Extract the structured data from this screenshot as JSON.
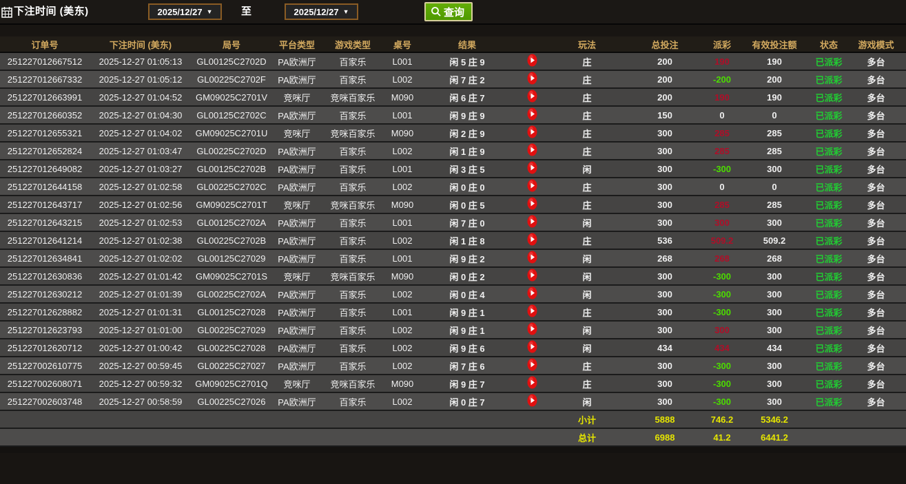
{
  "filter_bar": {
    "label": "下注时间 (美东)",
    "date_from": "2025/12/27",
    "to_label": "至",
    "date_to": "2025/12/27",
    "query_label": "查询",
    "calendar_icon": "calendar-icon",
    "search_icon": "magnifier-icon"
  },
  "table": {
    "columns": [
      "订单号",
      "下注时间 (美东)",
      "局号",
      "平台类型",
      "游戏类型",
      "桌号",
      "结果",
      "",
      "玩法",
      "总投注",
      "派彩",
      "有效投注额",
      "状态",
      "游戏模式"
    ],
    "rows": [
      {
        "order": "251227012667512",
        "time": "2025-12-27 01:05:13",
        "round": "GL00125C2702D",
        "platform": "PA欧洲厅",
        "game_type": "百家乐",
        "table_no": "L001",
        "result": "闲 5 庄 9",
        "bet_on": "庄",
        "total_bet": "200",
        "payout": "190",
        "valid_bet": "190",
        "status": "已派彩",
        "mode": "多台"
      },
      {
        "order": "251227012667332",
        "time": "2025-12-27 01:05:12",
        "round": "GL00225C2702F",
        "platform": "PA欧洲厅",
        "game_type": "百家乐",
        "table_no": "L002",
        "result": "闲 7 庄 2",
        "bet_on": "庄",
        "total_bet": "200",
        "payout": "-200",
        "valid_bet": "200",
        "status": "已派彩",
        "mode": "多台"
      },
      {
        "order": "251227012663991",
        "time": "2025-12-27 01:04:52",
        "round": "GM09025C2701V",
        "platform": "竞咪厅",
        "game_type": "竞咪百家乐",
        "table_no": "M090",
        "result": "闲 6 庄 7",
        "bet_on": "庄",
        "total_bet": "200",
        "payout": "190",
        "valid_bet": "190",
        "status": "已派彩",
        "mode": "多台"
      },
      {
        "order": "251227012660352",
        "time": "2025-12-27 01:04:30",
        "round": "GL00125C2702C",
        "platform": "PA欧洲厅",
        "game_type": "百家乐",
        "table_no": "L001",
        "result": "闲 9 庄 9",
        "bet_on": "庄",
        "total_bet": "150",
        "payout": "0",
        "valid_bet": "0",
        "status": "已派彩",
        "mode": "多台"
      },
      {
        "order": "251227012655321",
        "time": "2025-12-27 01:04:02",
        "round": "GM09025C2701U",
        "platform": "竞咪厅",
        "game_type": "竞咪百家乐",
        "table_no": "M090",
        "result": "闲 2 庄 9",
        "bet_on": "庄",
        "total_bet": "300",
        "payout": "285",
        "valid_bet": "285",
        "status": "已派彩",
        "mode": "多台"
      },
      {
        "order": "251227012652824",
        "time": "2025-12-27 01:03:47",
        "round": "GL00225C2702D",
        "platform": "PA欧洲厅",
        "game_type": "百家乐",
        "table_no": "L002",
        "result": "闲 1 庄 9",
        "bet_on": "庄",
        "total_bet": "300",
        "payout": "285",
        "valid_bet": "285",
        "status": "已派彩",
        "mode": "多台"
      },
      {
        "order": "251227012649082",
        "time": "2025-12-27 01:03:27",
        "round": "GL00125C2702B",
        "platform": "PA欧洲厅",
        "game_type": "百家乐",
        "table_no": "L001",
        "result": "闲 3 庄 5",
        "bet_on": "闲",
        "total_bet": "300",
        "payout": "-300",
        "valid_bet": "300",
        "status": "已派彩",
        "mode": "多台"
      },
      {
        "order": "251227012644158",
        "time": "2025-12-27 01:02:58",
        "round": "GL00225C2702C",
        "platform": "PA欧洲厅",
        "game_type": "百家乐",
        "table_no": "L002",
        "result": "闲 0 庄 0",
        "bet_on": "庄",
        "total_bet": "300",
        "payout": "0",
        "valid_bet": "0",
        "status": "已派彩",
        "mode": "多台"
      },
      {
        "order": "251227012643717",
        "time": "2025-12-27 01:02:56",
        "round": "GM09025C2701T",
        "platform": "竞咪厅",
        "game_type": "竞咪百家乐",
        "table_no": "M090",
        "result": "闲 0 庄 5",
        "bet_on": "庄",
        "total_bet": "300",
        "payout": "285",
        "valid_bet": "285",
        "status": "已派彩",
        "mode": "多台"
      },
      {
        "order": "251227012643215",
        "time": "2025-12-27 01:02:53",
        "round": "GL00125C2702A",
        "platform": "PA欧洲厅",
        "game_type": "百家乐",
        "table_no": "L001",
        "result": "闲 7 庄 0",
        "bet_on": "闲",
        "total_bet": "300",
        "payout": "300",
        "valid_bet": "300",
        "status": "已派彩",
        "mode": "多台"
      },
      {
        "order": "251227012641214",
        "time": "2025-12-27 01:02:38",
        "round": "GL00225C2702B",
        "platform": "PA欧洲厅",
        "game_type": "百家乐",
        "table_no": "L002",
        "result": "闲 1 庄 8",
        "bet_on": "庄",
        "total_bet": "536",
        "payout": "509.2",
        "valid_bet": "509.2",
        "status": "已派彩",
        "mode": "多台"
      },
      {
        "order": "251227012634841",
        "time": "2025-12-27 01:02:02",
        "round": "GL00125C27029",
        "platform": "PA欧洲厅",
        "game_type": "百家乐",
        "table_no": "L001",
        "result": "闲 9 庄 2",
        "bet_on": "闲",
        "total_bet": "268",
        "payout": "268",
        "valid_bet": "268",
        "status": "已派彩",
        "mode": "多台"
      },
      {
        "order": "251227012630836",
        "time": "2025-12-27 01:01:42",
        "round": "GM09025C2701S",
        "platform": "竞咪厅",
        "game_type": "竞咪百家乐",
        "table_no": "M090",
        "result": "闲 0 庄 2",
        "bet_on": "闲",
        "total_bet": "300",
        "payout": "-300",
        "valid_bet": "300",
        "status": "已派彩",
        "mode": "多台"
      },
      {
        "order": "251227012630212",
        "time": "2025-12-27 01:01:39",
        "round": "GL00225C2702A",
        "platform": "PA欧洲厅",
        "game_type": "百家乐",
        "table_no": "L002",
        "result": "闲 0 庄 4",
        "bet_on": "闲",
        "total_bet": "300",
        "payout": "-300",
        "valid_bet": "300",
        "status": "已派彩",
        "mode": "多台"
      },
      {
        "order": "251227012628882",
        "time": "2025-12-27 01:01:31",
        "round": "GL00125C27028",
        "platform": "PA欧洲厅",
        "game_type": "百家乐",
        "table_no": "L001",
        "result": "闲 9 庄 1",
        "bet_on": "庄",
        "total_bet": "300",
        "payout": "-300",
        "valid_bet": "300",
        "status": "已派彩",
        "mode": "多台"
      },
      {
        "order": "251227012623793",
        "time": "2025-12-27 01:01:00",
        "round": "GL00225C27029",
        "platform": "PA欧洲厅",
        "game_type": "百家乐",
        "table_no": "L002",
        "result": "闲 9 庄 1",
        "bet_on": "闲",
        "total_bet": "300",
        "payout": "300",
        "valid_bet": "300",
        "status": "已派彩",
        "mode": "多台"
      },
      {
        "order": "251227012620712",
        "time": "2025-12-27 01:00:42",
        "round": "GL00225C27028",
        "platform": "PA欧洲厅",
        "game_type": "百家乐",
        "table_no": "L002",
        "result": "闲 9 庄 6",
        "bet_on": "闲",
        "total_bet": "434",
        "payout": "434",
        "valid_bet": "434",
        "status": "已派彩",
        "mode": "多台"
      },
      {
        "order": "251227002610775",
        "time": "2025-12-27 00:59:45",
        "round": "GL00225C27027",
        "platform": "PA欧洲厅",
        "game_type": "百家乐",
        "table_no": "L002",
        "result": "闲 7 庄 6",
        "bet_on": "庄",
        "total_bet": "300",
        "payout": "-300",
        "valid_bet": "300",
        "status": "已派彩",
        "mode": "多台"
      },
      {
        "order": "251227002608071",
        "time": "2025-12-27 00:59:32",
        "round": "GM09025C2701Q",
        "platform": "竞咪厅",
        "game_type": "竞咪百家乐",
        "table_no": "M090",
        "result": "闲 9 庄 7",
        "bet_on": "庄",
        "total_bet": "300",
        "payout": "-300",
        "valid_bet": "300",
        "status": "已派彩",
        "mode": "多台"
      },
      {
        "order": "251227002603748",
        "time": "2025-12-27 00:58:59",
        "round": "GL00225C27026",
        "platform": "PA欧洲厅",
        "game_type": "百家乐",
        "table_no": "L002",
        "result": "闲 0 庄 7",
        "bet_on": "闲",
        "total_bet": "300",
        "payout": "-300",
        "valid_bet": "300",
        "status": "已派彩",
        "mode": "多台"
      }
    ],
    "subtotal": {
      "label": "小计",
      "total_bet": "5888",
      "payout": "746.2",
      "valid_bet": "5346.2"
    },
    "total": {
      "label": "总计",
      "total_bet": "6988",
      "payout": "41.2",
      "valid_bet": "6441.2"
    }
  },
  "colors": {
    "header_gold": "#d2a95f",
    "win_red": "#af0e28",
    "lose_green": "#4cdc00",
    "status_green": "#21cc33",
    "totals_yellow": "#e5e500",
    "query_button_green": "#4f9a00",
    "datebox_border": "#8a5c24"
  }
}
